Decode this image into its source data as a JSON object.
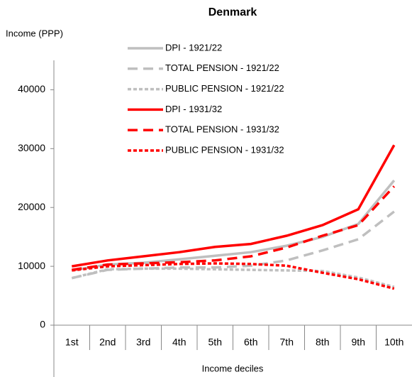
{
  "chart_data": {
    "type": "line",
    "title": "Denmark",
    "y_label": "Income (PPP)",
    "x_label": "Income deciles",
    "categories": [
      "1st",
      "2nd",
      "3rd",
      "4th",
      "5th",
      "6th",
      "7th",
      "8th",
      "9th",
      "10th"
    ],
    "ylim": [
      0,
      45000
    ],
    "yticks": [
      0,
      10000,
      20000,
      30000,
      40000
    ],
    "grid": false,
    "legend": "upper-left",
    "series": [
      {
        "name": "DPI  -  1921/22",
        "color": "#bfbfbf",
        "dash": "solid",
        "values": [
          9300,
          10300,
          10600,
          11200,
          11800,
          12400,
          13500,
          15000,
          17200,
          24600
        ]
      },
      {
        "name": "TOTAL PENSION  -  1921/22",
        "color": "#bfbfbf",
        "dash": "dashed",
        "values": [
          8000,
          9400,
          9600,
          9800,
          9800,
          10100,
          11000,
          12700,
          14600,
          19300
        ]
      },
      {
        "name": "PUBLIC PENSION  -  1921/22",
        "color": "#bfbfbf",
        "dash": "dotted",
        "values": [
          8000,
          9500,
          9600,
          9600,
          9500,
          9400,
          9300,
          9200,
          8100,
          6500
        ]
      },
      {
        "name": "DPI  -  1931/32",
        "color": "#ff0000",
        "dash": "solid",
        "values": [
          10000,
          11000,
          11700,
          12400,
          13300,
          13800,
          15200,
          17000,
          19700,
          30600
        ]
      },
      {
        "name": "TOTAL PENSION  -  1931/32",
        "color": "#ff0000",
        "dash": "dashed",
        "values": [
          9400,
          10300,
          10500,
          10700,
          11000,
          11700,
          13200,
          15200,
          17000,
          23600
        ]
      },
      {
        "name": "PUBLIC PENSION  -  1931/32",
        "color": "#ff0000",
        "dash": "dotted",
        "values": [
          9300,
          10000,
          10200,
          10400,
          10500,
          10400,
          10100,
          8900,
          7800,
          6200
        ]
      }
    ]
  }
}
